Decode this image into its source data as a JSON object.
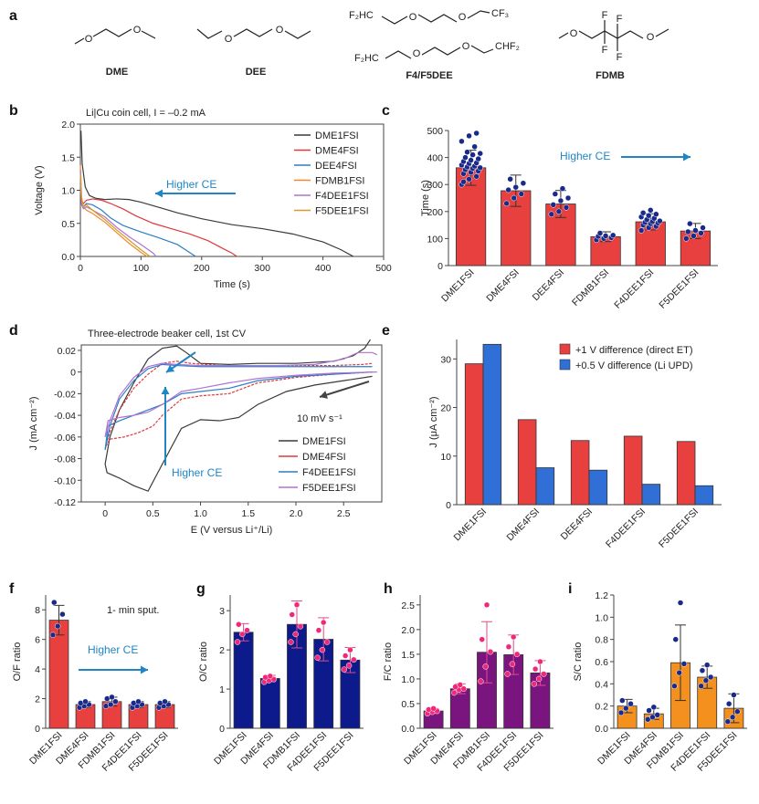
{
  "panels": {
    "a": {
      "letter": "a",
      "molecules": [
        {
          "name": "DME"
        },
        {
          "name": "DEE"
        },
        {
          "name": "F4/F5DEE",
          "labels": [
            "F₂HC",
            "CF₃",
            "F₂HC",
            "CHF₂"
          ]
        },
        {
          "name": "FDMB",
          "labels": [
            "F",
            "F",
            "F",
            "F"
          ]
        }
      ]
    },
    "b": {
      "letter": "b",
      "title": "Li|Cu coin cell, I = –0.2 mA",
      "arrow_label": "Higher CE"
    },
    "c": {
      "letter": "c",
      "arrow_label": "Higher CE"
    },
    "d": {
      "letter": "d",
      "title": "Three-electrode beaker cell, 1st CV",
      "arrow_label": "Higher CE",
      "scan_label": "10 mV s⁻¹"
    },
    "e": {
      "letter": "e"
    },
    "f": {
      "letter": "f",
      "note": "1- min sput.",
      "arrow_label": "Higher CE"
    },
    "g": {
      "letter": "g"
    },
    "h": {
      "letter": "h"
    },
    "i": {
      "letter": "i"
    }
  },
  "colors": {
    "DME1FSI": "#3a3a3a",
    "DME4FSI": "#e0383a",
    "DEE4FSI": "#2b7fc4",
    "FDMB1FSI": "#f08a24",
    "F4DEE1FSI": "#b072d4",
    "F5DEE1FSI": "#d89a2a",
    "red_bar": "#e8403f",
    "blue_bar": "#2f6fd6",
    "navy_bar": "#0c1a8c",
    "purple_bar": "#7a1580",
    "orange_bar": "#f4901e",
    "dot": "#1a2a8a",
    "pink_dot": "#f0287a",
    "arrow": "#1f86c6"
  },
  "chart_data": [
    {
      "id": "b",
      "type": "line",
      "xlabel": "Time (s)",
      "ylabel": "Voltage (V)",
      "xlim": [
        0,
        500
      ],
      "ylim": [
        0,
        2.0
      ],
      "xticks": [
        0,
        100,
        200,
        300,
        400,
        500
      ],
      "yticks": [
        0,
        0.5,
        1.0,
        1.5,
        2.0
      ],
      "legend_position": "top-right",
      "series": [
        {
          "name": "DME1FSI",
          "x": [
            1,
            3,
            8,
            15,
            25,
            40,
            60,
            80,
            100,
            130,
            160,
            200,
            250,
            300,
            350,
            400,
            430,
            450
          ],
          "y": [
            1.9,
            1.4,
            1.05,
            0.92,
            0.88,
            0.86,
            0.87,
            0.86,
            0.82,
            0.74,
            0.66,
            0.57,
            0.48,
            0.42,
            0.34,
            0.22,
            0.1,
            0.0
          ]
        },
        {
          "name": "DME4FSI",
          "x": [
            0,
            2,
            5,
            10,
            20,
            35,
            50,
            70,
            90,
            120,
            150,
            180,
            210,
            235,
            250,
            258
          ],
          "y": [
            1.0,
            0.85,
            0.8,
            0.85,
            0.87,
            0.85,
            0.8,
            0.72,
            0.62,
            0.5,
            0.42,
            0.34,
            0.24,
            0.12,
            0.05,
            0.0
          ]
        },
        {
          "name": "DEE4FSI",
          "x": [
            0,
            2,
            5,
            10,
            20,
            35,
            50,
            70,
            100,
            130,
            160,
            180,
            190
          ],
          "y": [
            1.1,
            0.8,
            0.75,
            0.8,
            0.78,
            0.7,
            0.58,
            0.47,
            0.37,
            0.28,
            0.18,
            0.06,
            0.0
          ]
        },
        {
          "name": "FDMB1FSI",
          "x": [
            0,
            2,
            5,
            10,
            20,
            40,
            60,
            80,
            100,
            110
          ],
          "y": [
            1.38,
            0.9,
            0.75,
            0.7,
            0.65,
            0.52,
            0.36,
            0.2,
            0.06,
            0.0
          ]
        },
        {
          "name": "F4DEE1FSI",
          "x": [
            0,
            2,
            5,
            10,
            20,
            40,
            60,
            80,
            100,
            120,
            125
          ],
          "y": [
            1.3,
            0.78,
            0.72,
            0.75,
            0.7,
            0.6,
            0.44,
            0.3,
            0.18,
            0.05,
            0.0
          ]
        },
        {
          "name": "F5DEE1FSI",
          "x": [
            0,
            2,
            5,
            10,
            20,
            40,
            60,
            80,
            100,
            115
          ],
          "y": [
            1.25,
            0.85,
            0.75,
            0.78,
            0.7,
            0.56,
            0.4,
            0.25,
            0.1,
            0.0
          ]
        }
      ]
    },
    {
      "id": "c",
      "type": "bar",
      "categories": [
        "DME1FSI",
        "DME4FSI",
        "DEE4FSI",
        "FDMB1FSI",
        "F4DEE1FSI",
        "F5DEE1FSI"
      ],
      "values": [
        362,
        277,
        228,
        107,
        162,
        128
      ],
      "errors": [
        65,
        58,
        50,
        18,
        30,
        28
      ],
      "ylabel": "Time (s)",
      "ylim": [
        0,
        500
      ],
      "yticks": [
        0,
        100,
        200,
        300,
        400,
        500
      ],
      "points": [
        [
          300,
          320,
          330,
          340,
          345,
          350,
          355,
          360,
          362,
          365,
          368,
          372,
          378,
          380,
          385,
          390,
          395,
          400,
          410,
          415,
          420,
          440,
          460,
          480,
          490,
          310
        ],
        [
          230,
          250,
          265,
          280,
          290,
          305,
          320
        ],
        [
          190,
          200,
          215,
          225,
          240,
          250,
          265,
          285
        ],
        [
          95,
          100,
          103,
          108,
          110,
          112,
          120
        ],
        [
          130,
          140,
          145,
          150,
          155,
          158,
          160,
          163,
          165,
          170,
          175,
          180,
          185,
          190,
          195,
          205
        ],
        [
          100,
          110,
          120,
          125,
          130,
          140,
          155
        ]
      ]
    },
    {
      "id": "d",
      "type": "line",
      "xlabel": "E (V versus Li⁺/Li)",
      "ylabel": "J (mA cm⁻²)",
      "xlim": [
        -0.25,
        2.9
      ],
      "ylim": [
        -0.12,
        0.025
      ],
      "xticks": [
        0,
        0.5,
        1.0,
        1.5,
        2.0,
        2.5
      ],
      "yticks": [
        -0.12,
        -0.1,
        -0.08,
        -0.06,
        -0.04,
        -0.02,
        0,
        0.02
      ],
      "legend_position": "bottom-right",
      "series": [
        {
          "name": "DME1FSI",
          "x": [
            2.8,
            2.5,
            2.2,
            1.9,
            1.6,
            1.4,
            1.2,
            1.0,
            0.8,
            0.6,
            0.45,
            0.3,
            0.15,
            0.02,
            0.0,
            0.05,
            0.15,
            0.3,
            0.45,
            0.6,
            0.75,
            0.85,
            1.0,
            1.3,
            1.6,
            2.0,
            2.4,
            2.6,
            2.72,
            2.78
          ],
          "y": [
            -0.004,
            -0.008,
            -0.012,
            -0.018,
            -0.03,
            -0.042,
            -0.045,
            -0.044,
            -0.052,
            -0.085,
            -0.11,
            -0.105,
            -0.098,
            -0.093,
            -0.085,
            -0.06,
            -0.035,
            -0.01,
            0.012,
            0.022,
            0.024,
            0.018,
            0.008,
            0.007,
            0.008,
            0.008,
            0.01,
            0.015,
            0.022,
            0.03
          ]
        },
        {
          "name": "DME4FSI",
          "x": [
            2.8,
            2.4,
            2.0,
            1.6,
            1.3,
            1.0,
            0.8,
            0.6,
            0.5,
            0.35,
            0.2,
            0.05,
            0.0,
            0.05,
            0.15,
            0.3,
            0.45,
            0.6,
            0.75,
            0.9,
            1.2,
            1.6,
            2.0,
            2.4,
            2.7,
            2.8
          ],
          "y": [
            0.0,
            -0.002,
            -0.005,
            -0.01,
            -0.02,
            -0.022,
            -0.025,
            -0.04,
            -0.05,
            -0.056,
            -0.06,
            -0.062,
            -0.07,
            -0.055,
            -0.035,
            -0.015,
            -0.002,
            0.008,
            0.01,
            0.008,
            0.006,
            0.006,
            0.006,
            0.006,
            0.007,
            0.008
          ]
        },
        {
          "name": "F4DEE1FSI",
          "x": [
            2.8,
            2.4,
            2.0,
            1.6,
            1.3,
            1.0,
            0.8,
            0.6,
            0.45,
            0.3,
            0.15,
            0.03,
            0.0,
            0.05,
            0.15,
            0.3,
            0.45,
            0.6,
            0.75,
            1.0,
            1.4,
            1.8,
            2.2,
            2.6,
            2.8
          ],
          "y": [
            0.0,
            -0.002,
            -0.004,
            -0.008,
            -0.015,
            -0.018,
            -0.02,
            -0.03,
            -0.035,
            -0.04,
            -0.045,
            -0.05,
            -0.072,
            -0.05,
            -0.025,
            -0.008,
            0.003,
            0.007,
            0.006,
            0.005,
            0.005,
            0.005,
            0.005,
            0.005,
            0.005
          ]
        },
        {
          "name": "F5DEE1FSI",
          "x": [
            2.85,
            2.4,
            2.0,
            1.6,
            1.3,
            1.0,
            0.8,
            0.6,
            0.45,
            0.3,
            0.15,
            0.03,
            0.0,
            0.05,
            0.15,
            0.3,
            0.45,
            0.6,
            0.75,
            1.0,
            1.4,
            1.8,
            2.2,
            2.5,
            2.65,
            2.8,
            2.85
          ],
          "y": [
            0.0,
            -0.001,
            -0.003,
            -0.006,
            -0.01,
            -0.015,
            -0.018,
            -0.03,
            -0.037,
            -0.04,
            -0.042,
            -0.045,
            -0.06,
            -0.045,
            -0.022,
            -0.005,
            0.005,
            0.008,
            0.007,
            0.006,
            0.006,
            0.006,
            0.007,
            0.012,
            0.018,
            0.018,
            0.016
          ]
        }
      ]
    },
    {
      "id": "e",
      "type": "bar",
      "categories": [
        "DME1FSI",
        "DME4FSI",
        "DEE4FSI",
        "F4DEE1FSI",
        "F5DEE1FSI"
      ],
      "ylabel": "J (μA cm⁻²)",
      "ylim": [
        0,
        34
      ],
      "yticks": [
        0,
        10,
        20,
        30
      ],
      "legend_position": "top-right",
      "series": [
        {
          "name": "+1 V difference (direct ET)",
          "values": [
            29,
            17.5,
            13.2,
            14.1,
            13.0
          ]
        },
        {
          "name": "+0.5 V difference (Li UPD)",
          "values": [
            33,
            7.6,
            7.1,
            4.2,
            3.9
          ]
        }
      ]
    },
    {
      "id": "f",
      "type": "bar",
      "categories": [
        "DME1FSI",
        "DME4FSI",
        "FDMB1FSI",
        "F4DEE1FSI",
        "F5DEE1FSI"
      ],
      "values": [
        7.3,
        1.6,
        1.8,
        1.6,
        1.6
      ],
      "errors": [
        1.0,
        0.2,
        0.3,
        0.2,
        0.2
      ],
      "ylabel": "O/F ratio",
      "ylim": [
        0,
        9
      ],
      "yticks": [
        0,
        2,
        4,
        6,
        8
      ],
      "points": [
        [
          6.3,
          6.9,
          7.7,
          8.5
        ],
        [
          1.4,
          1.5,
          1.6,
          1.7,
          1.8
        ],
        [
          1.5,
          1.6,
          1.8,
          2.0,
          2.1
        ],
        [
          1.4,
          1.5,
          1.6,
          1.7,
          1.8
        ],
        [
          1.4,
          1.5,
          1.6,
          1.7,
          1.8
        ]
      ]
    },
    {
      "id": "g",
      "type": "bar",
      "categories": [
        "DME1FSI",
        "DME4FSI",
        "FDMB1FSI",
        "F4DEE1FSI",
        "F5DEE1FSI"
      ],
      "values": [
        2.45,
        1.27,
        2.65,
        2.27,
        1.74
      ],
      "errors": [
        0.22,
        0.08,
        0.6,
        0.55,
        0.32
      ],
      "ylabel": "O/C ratio",
      "ylim": [
        0,
        3.4
      ],
      "yticks": [
        0,
        1,
        2,
        3
      ],
      "points": [
        [
          2.2,
          2.4,
          2.5,
          2.65
        ],
        [
          1.18,
          1.22,
          1.25,
          1.3,
          1.33
        ],
        [
          2.2,
          2.4,
          2.6,
          2.9,
          3.15
        ],
        [
          1.8,
          2.0,
          2.2,
          2.5,
          2.7
        ],
        [
          1.5,
          1.6,
          1.75,
          1.85,
          2.0
        ]
      ]
    },
    {
      "id": "h",
      "type": "bar",
      "categories": [
        "DME1FSI",
        "DME4FSI",
        "FDMB1FSI",
        "F4DEE1FSI",
        "F5DEE1FSI"
      ],
      "values": [
        0.35,
        0.8,
        1.54,
        1.49,
        1.12
      ],
      "errors": [
        0.05,
        0.1,
        0.62,
        0.4,
        0.25
      ],
      "ylabel": "F/C ratio",
      "ylim": [
        0,
        2.7
      ],
      "yticks": [
        0,
        0.5,
        1.0,
        1.5,
        2.0,
        2.5
      ],
      "points": [
        [
          0.3,
          0.33,
          0.35,
          0.38,
          0.4
        ],
        [
          0.72,
          0.78,
          0.8,
          0.84,
          0.88
        ],
        [
          0.95,
          1.25,
          1.55,
          1.8,
          2.5
        ],
        [
          1.1,
          1.3,
          1.5,
          1.65,
          1.85
        ],
        [
          0.9,
          1.0,
          1.1,
          1.2,
          1.35
        ]
      ]
    },
    {
      "id": "i",
      "type": "bar",
      "categories": [
        "DME1FSI",
        "DME4FSI",
        "FDMB1FSI",
        "F4DEE1FSI",
        "F5DEE1FSI"
      ],
      "values": [
        0.2,
        0.13,
        0.59,
        0.46,
        0.18
      ],
      "errors": [
        0.06,
        0.05,
        0.34,
        0.1,
        0.13
      ],
      "ylabel": "S/C ratio",
      "ylim": [
        0,
        1.2
      ],
      "yticks": [
        0,
        0.2,
        0.4,
        0.6,
        0.8,
        1.0,
        1.2
      ],
      "points": [
        [
          0.14,
          0.18,
          0.22,
          0.25
        ],
        [
          0.08,
          0.1,
          0.12,
          0.16,
          0.19
        ],
        [
          0.38,
          0.5,
          0.58,
          0.8,
          1.13
        ],
        [
          0.38,
          0.43,
          0.46,
          0.52,
          0.57
        ],
        [
          0.06,
          0.1,
          0.15,
          0.22,
          0.3
        ]
      ]
    }
  ]
}
